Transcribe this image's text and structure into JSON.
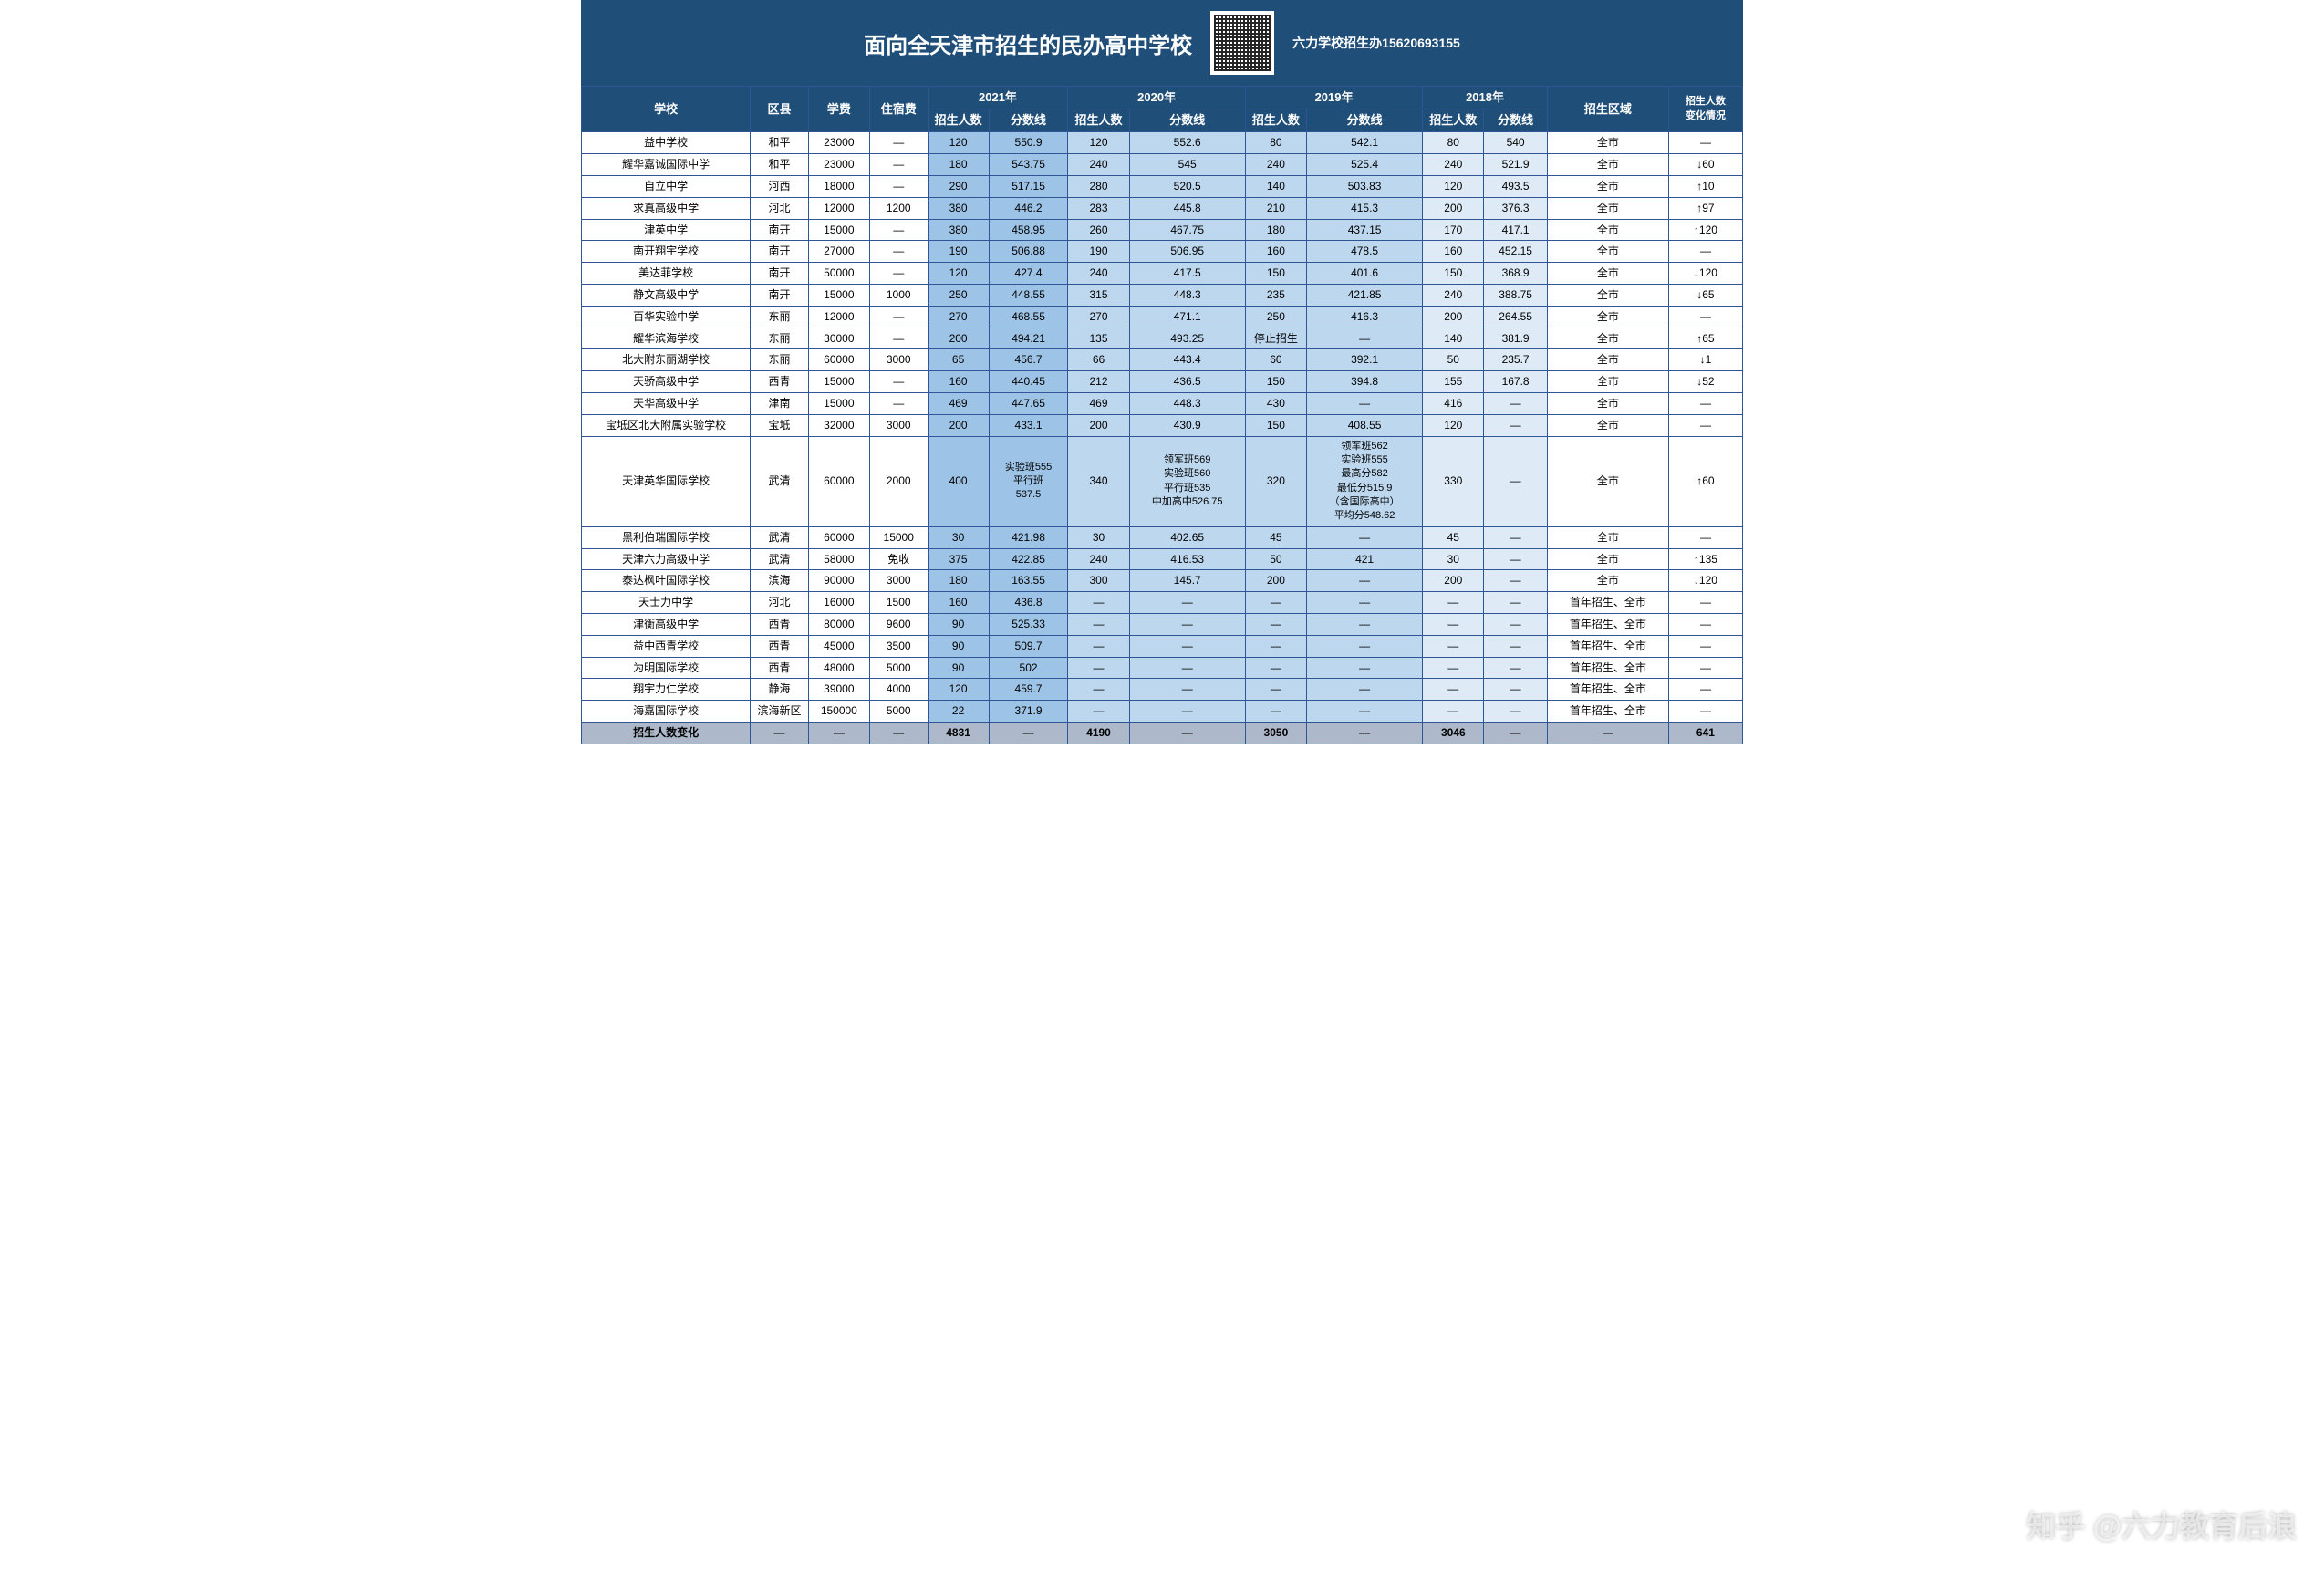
{
  "header": {
    "title": "面向全天津市招生的民办高中学校",
    "contact": "六力学校招生办15620693155"
  },
  "watermark": "知乎 @六力教育后浪",
  "columns": {
    "school": "学校",
    "district": "区县",
    "tuition": "学费",
    "dorm": "住宿费",
    "y2021": "2021年",
    "y2020": "2020年",
    "y2019": "2019年",
    "y2018": "2018年",
    "sub_enroll": "招生人数",
    "sub_score": "分数线",
    "region": "招生区域",
    "change": "招生人数\n变化情况"
  },
  "colwidths": {
    "school": 160,
    "district": 55,
    "tuition": 58,
    "dorm": 55,
    "e": 58,
    "s": 75,
    "e2": 58,
    "s2": 110,
    "e3": 58,
    "s3": 110,
    "e4": 58,
    "s4": 60,
    "region": 115,
    "change": 70
  },
  "colors": {
    "header_bg": "#1f4e79",
    "y21_bg": "#9dc3e6",
    "y20_bg": "#bdd7ee",
    "y19_bg": "#bdd7ee",
    "y18_bg": "#deebf7",
    "sumrow_bg": "#adb9ca",
    "border": "#2f5597"
  },
  "rows": [
    {
      "school": "益中学校",
      "district": "和平",
      "tuition": "23000",
      "dorm": "—",
      "e21": "120",
      "s21": "550.9",
      "e20": "120",
      "s20": "552.6",
      "e19": "80",
      "s19": "542.1",
      "e18": "80",
      "s18": "540",
      "region": "全市",
      "change": "—"
    },
    {
      "school": "耀华嘉诚国际中学",
      "district": "和平",
      "tuition": "23000",
      "dorm": "—",
      "e21": "180",
      "s21": "543.75",
      "e20": "240",
      "s20": "545",
      "e19": "240",
      "s19": "525.4",
      "e18": "240",
      "s18": "521.9",
      "region": "全市",
      "change": "↓60"
    },
    {
      "school": "自立中学",
      "district": "河西",
      "tuition": "18000",
      "dorm": "—",
      "e21": "290",
      "s21": "517.15",
      "e20": "280",
      "s20": "520.5",
      "e19": "140",
      "s19": "503.83",
      "e18": "120",
      "s18": "493.5",
      "region": "全市",
      "change": "↑10"
    },
    {
      "school": "求真高级中学",
      "district": "河北",
      "tuition": "12000",
      "dorm": "1200",
      "e21": "380",
      "s21": "446.2",
      "e20": "283",
      "s20": "445.8",
      "e19": "210",
      "s19": "415.3",
      "e18": "200",
      "s18": "376.3",
      "region": "全市",
      "change": "↑97"
    },
    {
      "school": "津英中学",
      "district": "南开",
      "tuition": "15000",
      "dorm": "—",
      "e21": "380",
      "s21": "458.95",
      "e20": "260",
      "s20": "467.75",
      "e19": "180",
      "s19": "437.15",
      "e18": "170",
      "s18": "417.1",
      "region": "全市",
      "change": "↑120"
    },
    {
      "school": "南开翔宇学校",
      "district": "南开",
      "tuition": "27000",
      "dorm": "—",
      "e21": "190",
      "s21": "506.88",
      "e20": "190",
      "s20": "506.95",
      "e19": "160",
      "s19": "478.5",
      "e18": "160",
      "s18": "452.15",
      "region": "全市",
      "change": "—"
    },
    {
      "school": "美达菲学校",
      "district": "南开",
      "tuition": "50000",
      "dorm": "—",
      "e21": "120",
      "s21": "427.4",
      "e20": "240",
      "s20": "417.5",
      "e19": "150",
      "s19": "401.6",
      "e18": "150",
      "s18": "368.9",
      "region": "全市",
      "change": "↓120"
    },
    {
      "school": "静文高级中学",
      "district": "南开",
      "tuition": "15000",
      "dorm": "1000",
      "e21": "250",
      "s21": "448.55",
      "e20": "315",
      "s20": "448.3",
      "e19": "235",
      "s19": "421.85",
      "e18": "240",
      "s18": "388.75",
      "region": "全市",
      "change": "↓65"
    },
    {
      "school": "百华实验中学",
      "district": "东丽",
      "tuition": "12000",
      "dorm": "—",
      "e21": "270",
      "s21": "468.55",
      "e20": "270",
      "s20": "471.1",
      "e19": "250",
      "s19": "416.3",
      "e18": "200",
      "s18": "264.55",
      "region": "全市",
      "change": "—"
    },
    {
      "school": "耀华滨海学校",
      "district": "东丽",
      "tuition": "30000",
      "dorm": "—",
      "e21": "200",
      "s21": "494.21",
      "e20": "135",
      "s20": "493.25",
      "e19": "停止招生",
      "s19": "—",
      "e18": "140",
      "s18": "381.9",
      "region": "全市",
      "change": "↑65"
    },
    {
      "school": "北大附东丽湖学校",
      "district": "东丽",
      "tuition": "60000",
      "dorm": "3000",
      "e21": "65",
      "s21": "456.7",
      "e20": "66",
      "s20": "443.4",
      "e19": "60",
      "s19": "392.1",
      "e18": "50",
      "s18": "235.7",
      "region": "全市",
      "change": "↓1"
    },
    {
      "school": "天骄高级中学",
      "district": "西青",
      "tuition": "15000",
      "dorm": "—",
      "e21": "160",
      "s21": "440.45",
      "e20": "212",
      "s20": "436.5",
      "e19": "150",
      "s19": "394.8",
      "e18": "155",
      "s18": "167.8",
      "region": "全市",
      "change": "↓52"
    },
    {
      "school": "天华高级中学",
      "district": "津南",
      "tuition": "15000",
      "dorm": "—",
      "e21": "469",
      "s21": "447.65",
      "e20": "469",
      "s20": "448.3",
      "e19": "430",
      "s19": "—",
      "e18": "416",
      "s18": "—",
      "region": "全市",
      "change": "—"
    },
    {
      "school": "宝坻区北大附属实验学校",
      "district": "宝坻",
      "tuition": "32000",
      "dorm": "3000",
      "e21": "200",
      "s21": "433.1",
      "e20": "200",
      "s20": "430.9",
      "e19": "150",
      "s19": "408.55",
      "e18": "120",
      "s18": "—",
      "region": "全市",
      "change": "—"
    },
    {
      "school": "天津英华国际学校",
      "district": "武清",
      "tuition": "60000",
      "dorm": "2000",
      "e21": "400",
      "s21": "实验班555\n平行班\n537.5",
      "e20": "340",
      "s20": "领军班569\n实验班560\n平行班535\n中加高中526.75",
      "e19": "320",
      "s19": "领军班562\n实验班555\n最高分582\n最低分515.9\n（含国际高中）\n平均分548.62",
      "e18": "330",
      "s18": "—",
      "region": "全市",
      "change": "↑60"
    },
    {
      "school": "黑利伯瑞国际学校",
      "district": "武清",
      "tuition": "60000",
      "dorm": "15000",
      "e21": "30",
      "s21": "421.98",
      "e20": "30",
      "s20": "402.65",
      "e19": "45",
      "s19": "—",
      "e18": "45",
      "s18": "—",
      "region": "全市",
      "change": "—"
    },
    {
      "school": "天津六力高级中学",
      "district": "武清",
      "tuition": "58000",
      "dorm": "免收",
      "e21": "375",
      "s21": "422.85",
      "e20": "240",
      "s20": "416.53",
      "e19": "50",
      "s19": "421",
      "e18": "30",
      "s18": "—",
      "region": "全市",
      "change": "↑135"
    },
    {
      "school": "泰达枫叶国际学校",
      "district": "滨海",
      "tuition": "90000",
      "dorm": "3000",
      "e21": "180",
      "s21": "163.55",
      "e20": "300",
      "s20": "145.7",
      "e19": "200",
      "s19": "—",
      "e18": "200",
      "s18": "—",
      "region": "全市",
      "change": "↓120"
    },
    {
      "school": "天士力中学",
      "district": "河北",
      "tuition": "16000",
      "dorm": "1500",
      "e21": "160",
      "s21": "436.8",
      "e20": "—",
      "s20": "—",
      "e19": "—",
      "s19": "—",
      "e18": "—",
      "s18": "—",
      "region": "首年招生、全市",
      "change": "—"
    },
    {
      "school": "津衡高级中学",
      "district": "西青",
      "tuition": "80000",
      "dorm": "9600",
      "e21": "90",
      "s21": "525.33",
      "e20": "—",
      "s20": "—",
      "e19": "—",
      "s19": "—",
      "e18": "—",
      "s18": "—",
      "region": "首年招生、全市",
      "change": "—"
    },
    {
      "school": "益中西青学校",
      "district": "西青",
      "tuition": "45000",
      "dorm": "3500",
      "e21": "90",
      "s21": "509.7",
      "e20": "—",
      "s20": "—",
      "e19": "—",
      "s19": "—",
      "e18": "—",
      "s18": "—",
      "region": "首年招生、全市",
      "change": "—"
    },
    {
      "school": "为明国际学校",
      "district": "西青",
      "tuition": "48000",
      "dorm": "5000",
      "e21": "90",
      "s21": "502",
      "e20": "—",
      "s20": "—",
      "e19": "—",
      "s19": "—",
      "e18": "—",
      "s18": "—",
      "region": "首年招生、全市",
      "change": "—"
    },
    {
      "school": "翔宇力仁学校",
      "district": "静海",
      "tuition": "39000",
      "dorm": "4000",
      "e21": "120",
      "s21": "459.7",
      "e20": "—",
      "s20": "—",
      "e19": "—",
      "s19": "—",
      "e18": "—",
      "s18": "—",
      "region": "首年招生、全市",
      "change": "—"
    },
    {
      "school": "海嘉国际学校",
      "district": "滨海新区",
      "tuition": "150000",
      "dorm": "5000",
      "e21": "22",
      "s21": "371.9",
      "e20": "—",
      "s20": "—",
      "e19": "—",
      "s19": "—",
      "e18": "—",
      "s18": "—",
      "region": "首年招生、全市",
      "change": "—"
    }
  ],
  "summary": {
    "school": "招生人数变化",
    "district": "—",
    "tuition": "—",
    "dorm": "—",
    "e21": "4831",
    "s21": "—",
    "e20": "4190",
    "s20": "—",
    "e19": "3050",
    "s19": "—",
    "e18": "3046",
    "s18": "—",
    "region": "—",
    "change": "641"
  }
}
